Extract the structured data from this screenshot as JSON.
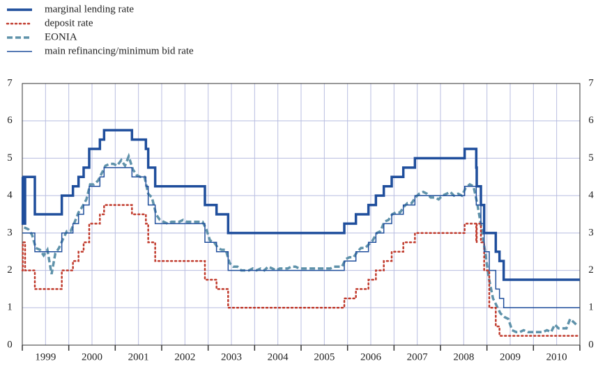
{
  "chart_data": {
    "type": "line",
    "step": "post",
    "legend": "top-left",
    "grid": true,
    "xlim": [
      1999,
      2011
    ],
    "ylim": [
      0,
      7
    ],
    "yticks": [
      0,
      1,
      2,
      3,
      4,
      5,
      6,
      7
    ],
    "xticks": [
      {
        "value": 1999.5,
        "label": "1999"
      },
      {
        "value": 2000.5,
        "label": "2000"
      },
      {
        "value": 2001.5,
        "label": "2001"
      },
      {
        "value": 2002.5,
        "label": "2002"
      },
      {
        "value": 2003.5,
        "label": "2003"
      },
      {
        "value": 2004.5,
        "label": "2004"
      },
      {
        "value": 2005.5,
        "label": "2005"
      },
      {
        "value": 2006.5,
        "label": "2006"
      },
      {
        "value": 2007.5,
        "label": "2007"
      },
      {
        "value": 2008.5,
        "label": "2008"
      },
      {
        "value": 2009.5,
        "label": "2009"
      },
      {
        "value": 2010.5,
        "label": "2010"
      }
    ],
    "xminor_ticks": [
      1999,
      2000,
      2001,
      2002,
      2003,
      2004,
      2005,
      2006,
      2007,
      2008,
      2009,
      2010,
      2011
    ],
    "x": [
      1999.0,
      1999.01,
      1999.06,
      1999.27,
      1999.85,
      2000.09,
      2000.21,
      2000.32,
      2000.44,
      2000.67,
      2000.76,
      2001.36,
      2001.66,
      2001.71,
      2001.86,
      2002.93,
      2003.18,
      2003.43,
      2005.93,
      2006.18,
      2006.45,
      2006.61,
      2006.78,
      2006.95,
      2007.2,
      2007.45,
      2008.52,
      2008.77,
      2008.78,
      2008.87,
      2008.94,
      2009.05,
      2009.19,
      2009.27,
      2009.36,
      2011.0
    ],
    "series": [
      {
        "name": "marginal lending rate",
        "color": "#1f4e9c",
        "style": "solid",
        "linewidth": 3.5,
        "values": [
          4.5,
          3.25,
          4.5,
          3.5,
          4.0,
          4.25,
          4.5,
          4.75,
          5.25,
          5.5,
          5.75,
          5.5,
          5.25,
          4.75,
          4.25,
          3.75,
          3.5,
          3.0,
          3.25,
          3.5,
          3.75,
          4.0,
          4.25,
          4.5,
          4.75,
          5.0,
          5.25,
          4.75,
          4.25,
          3.75,
          3.0,
          3.0,
          2.5,
          2.25,
          1.75,
          1.75
        ]
      },
      {
        "name": "deposit rate",
        "color": "#c0392b",
        "style": "dotted",
        "linewidth": 2.5,
        "values": [
          2.0,
          2.75,
          2.0,
          1.5,
          2.0,
          2.25,
          2.5,
          2.75,
          3.25,
          3.5,
          3.75,
          3.5,
          3.25,
          2.75,
          2.25,
          1.75,
          1.5,
          1.0,
          1.25,
          1.5,
          1.75,
          2.0,
          2.25,
          2.5,
          2.75,
          3.0,
          3.25,
          2.75,
          3.25,
          2.75,
          2.0,
          1.0,
          0.5,
          0.25,
          0.25,
          0.25
        ]
      },
      {
        "name": "EONIA",
        "color": "#5f92aa",
        "style": "dashed",
        "linewidth": 3.5,
        "step": "none",
        "x": [
          1999.04,
          1999.13,
          1999.21,
          1999.29,
          1999.38,
          1999.46,
          1999.54,
          1999.63,
          1999.71,
          1999.79,
          1999.88,
          1999.96,
          2000.04,
          2000.13,
          2000.21,
          2000.29,
          2000.38,
          2000.46,
          2000.54,
          2000.63,
          2000.71,
          2000.79,
          2000.88,
          2000.96,
          2001.04,
          2001.13,
          2001.21,
          2001.29,
          2001.38,
          2001.46,
          2001.54,
          2001.63,
          2001.71,
          2001.79,
          2001.88,
          2001.96,
          2002.04,
          2002.13,
          2002.21,
          2002.29,
          2002.38,
          2002.46,
          2002.54,
          2002.63,
          2002.71,
          2002.79,
          2002.88,
          2002.96,
          2003.04,
          2003.13,
          2003.21,
          2003.29,
          2003.38,
          2003.46,
          2003.54,
          2003.63,
          2003.71,
          2003.79,
          2003.88,
          2003.96,
          2004.04,
          2004.13,
          2004.21,
          2004.29,
          2004.38,
          2004.46,
          2004.54,
          2004.63,
          2004.71,
          2004.79,
          2004.88,
          2004.96,
          2005.04,
          2005.13,
          2005.21,
          2005.29,
          2005.38,
          2005.46,
          2005.54,
          2005.63,
          2005.71,
          2005.79,
          2005.88,
          2005.96,
          2006.04,
          2006.13,
          2006.21,
          2006.29,
          2006.38,
          2006.46,
          2006.54,
          2006.63,
          2006.71,
          2006.79,
          2006.88,
          2006.96,
          2007.04,
          2007.13,
          2007.21,
          2007.29,
          2007.38,
          2007.46,
          2007.54,
          2007.63,
          2007.71,
          2007.79,
          2007.88,
          2007.96,
          2008.04,
          2008.13,
          2008.21,
          2008.29,
          2008.38,
          2008.46,
          2008.54,
          2008.63,
          2008.71,
          2008.79,
          2008.88,
          2008.96,
          2009.04,
          2009.13,
          2009.21,
          2009.29,
          2009.38,
          2009.46,
          2009.54,
          2009.63,
          2009.71,
          2009.79,
          2009.88,
          2009.96,
          2010.04,
          2010.13,
          2010.21,
          2010.29,
          2010.38,
          2010.46,
          2010.54,
          2010.63,
          2010.71,
          2010.79,
          2010.88,
          2010.96
        ],
        "values": [
          3.15,
          3.1,
          2.95,
          2.6,
          2.55,
          2.4,
          2.55,
          1.9,
          2.45,
          2.6,
          2.85,
          3.05,
          3.05,
          3.3,
          3.55,
          3.7,
          3.9,
          4.3,
          4.3,
          4.4,
          4.6,
          4.8,
          4.85,
          4.85,
          4.8,
          4.95,
          4.8,
          5.05,
          4.7,
          4.55,
          4.5,
          4.5,
          4.05,
          3.95,
          3.5,
          3.35,
          3.3,
          3.25,
          3.3,
          3.3,
          3.3,
          3.35,
          3.3,
          3.3,
          3.3,
          3.3,
          3.3,
          3.1,
          2.8,
          2.75,
          2.6,
          2.55,
          2.55,
          2.2,
          2.1,
          2.1,
          2.0,
          2.0,
          2.0,
          2.05,
          2.0,
          2.05,
          2.0,
          2.1,
          2.05,
          2.0,
          2.05,
          2.05,
          2.05,
          2.1,
          2.1,
          2.05,
          2.05,
          2.05,
          2.05,
          2.05,
          2.05,
          2.05,
          2.05,
          2.05,
          2.1,
          2.1,
          2.1,
          2.3,
          2.35,
          2.35,
          2.5,
          2.6,
          2.6,
          2.7,
          2.8,
          3.0,
          3.05,
          3.3,
          3.35,
          3.5,
          3.55,
          3.55,
          3.7,
          3.8,
          3.8,
          3.95,
          4.05,
          4.1,
          4.05,
          3.95,
          3.95,
          3.9,
          4.0,
          4.05,
          4.1,
          4.0,
          4.05,
          4.0,
          4.2,
          4.3,
          4.25,
          3.8,
          3.15,
          2.5,
          1.8,
          1.25,
          1.05,
          0.85,
          0.75,
          0.7,
          0.4,
          0.35,
          0.35,
          0.4,
          0.35,
          0.35,
          0.35,
          0.35,
          0.35,
          0.4,
          0.35,
          0.55,
          0.45,
          0.45,
          0.45,
          0.7,
          0.6,
          0.5
        ]
      },
      {
        "name": "main refinancing/minimum bid rate",
        "color": "#1f4e9c",
        "style": "solid",
        "linewidth": 1.5,
        "values": [
          3.0,
          3.0,
          3.0,
          2.5,
          3.0,
          3.25,
          3.5,
          3.75,
          4.25,
          4.5,
          4.75,
          4.5,
          4.25,
          3.75,
          3.25,
          2.75,
          2.5,
          2.0,
          2.25,
          2.5,
          2.75,
          3.0,
          3.25,
          3.5,
          3.75,
          4.0,
          4.25,
          3.75,
          3.75,
          3.25,
          2.5,
          2.0,
          1.5,
          1.25,
          1.0,
          1.0
        ]
      }
    ]
  }
}
